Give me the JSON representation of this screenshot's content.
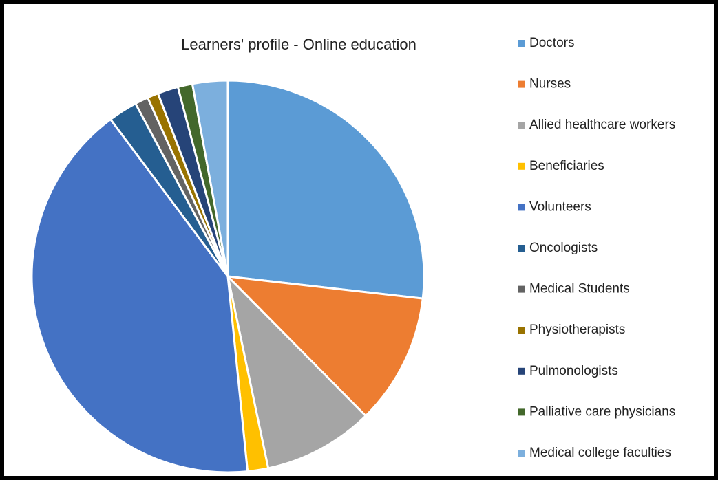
{
  "chart_data": {
    "type": "pie",
    "title": "Learners' profile - Online education",
    "categories": [
      "Doctors",
      "Nurses",
      "Allied healthcare workers",
      "Beneficiaries",
      "Volunteers",
      "Oncologists",
      "Medical Students",
      "Physiotherapists",
      "Pulmonologists",
      "Palliative care physicians",
      "Medical college faculties"
    ],
    "values": [
      26.8,
      10.8,
      9.1,
      1.7,
      41.4,
      2.4,
      1.1,
      0.9,
      1.7,
      1.2,
      2.9
    ],
    "colors": [
      "#5b9bd5",
      "#ed7d31",
      "#a5a5a5",
      "#ffc000",
      "#4472c4",
      "#255e91",
      "#636363",
      "#997300",
      "#264478",
      "#43682b",
      "#7cafdd"
    ],
    "legend": "right"
  }
}
